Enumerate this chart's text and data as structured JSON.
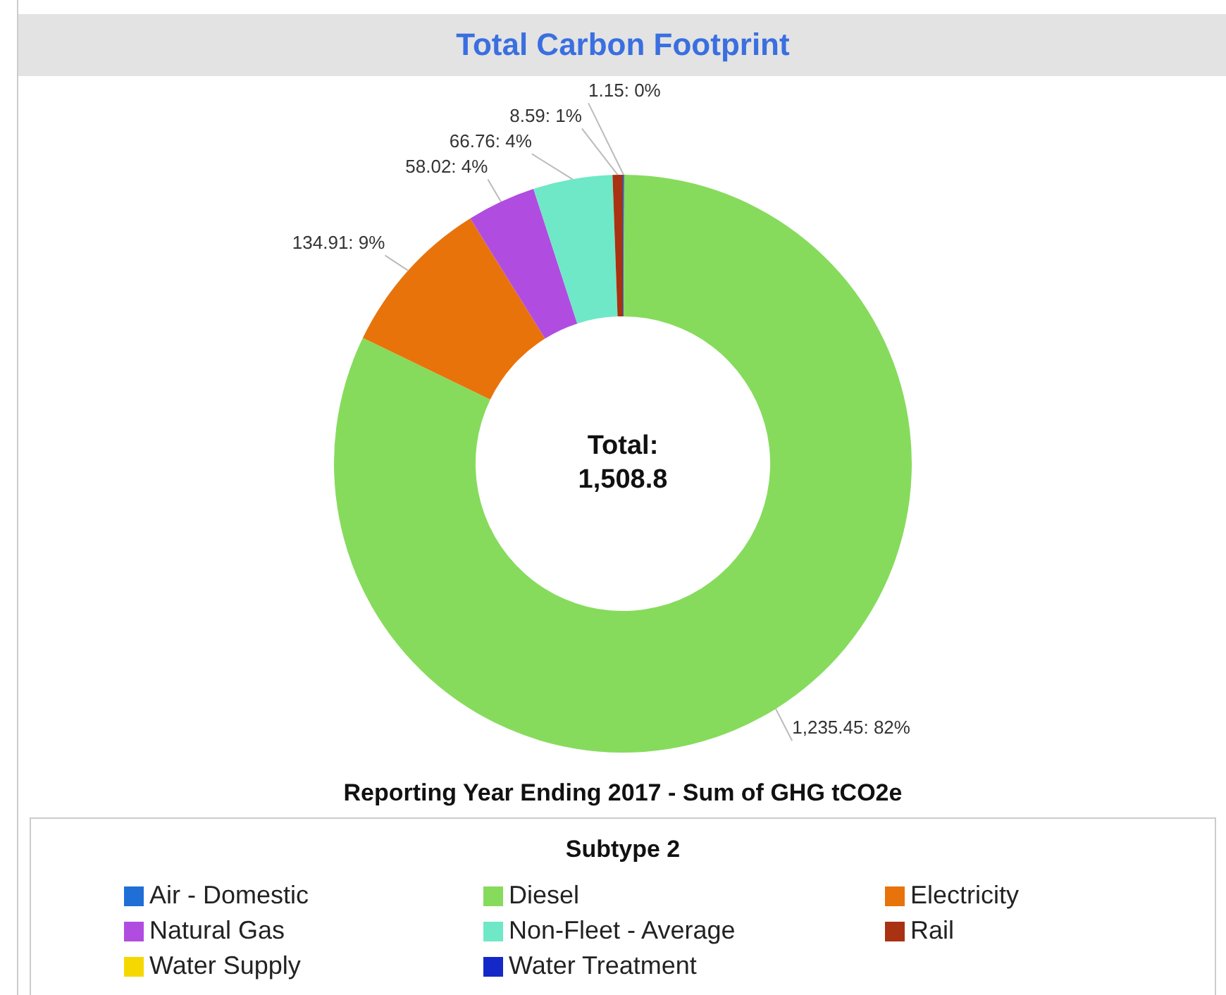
{
  "chart_data": {
    "type": "donut",
    "title": "Total Carbon Footprint",
    "subtitle": "Reporting Year Ending 2017 - Sum of GHG tCO2e",
    "legend_title": "Subtype 2",
    "legend": "bottom",
    "categories": [
      "Air - Domestic",
      "Diesel",
      "Electricity",
      "Natural Gas",
      "Non-Fleet - Average",
      "Rail",
      "Water Supply",
      "Water Treatment"
    ],
    "values": [
      1.15,
      1235.45,
      134.91,
      58.02,
      66.76,
      8.59,
      null,
      null
    ],
    "value_labels": [
      "1.15: 0%",
      "1,235.45: 82%",
      "134.91: 9%",
      "58.02: 4%",
      "66.76: 4%",
      "8.59: 1%",
      null,
      null
    ],
    "colors": [
      "#1f6fd6",
      "#86db5c",
      "#e8730a",
      "#b04de0",
      "#6ee8c7",
      "#a83212",
      "#f5d800",
      "#1428c8"
    ],
    "annotations": [
      "Total:\n1,508.8"
    ]
  }
}
